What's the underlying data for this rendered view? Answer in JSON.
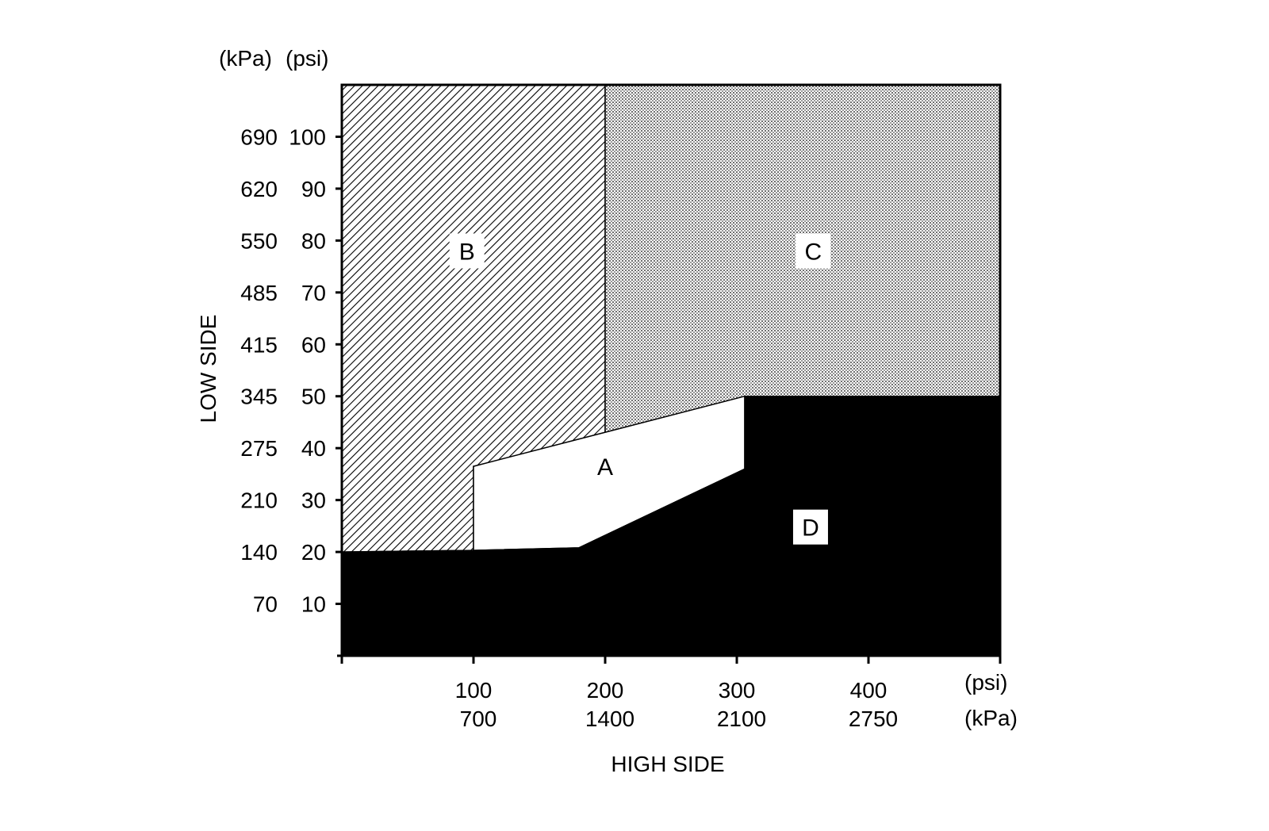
{
  "chart_data": {
    "type": "area",
    "x_axis": {
      "title": "HIGH SIDE",
      "unit_labels": [
        "(psi)",
        "(kPa)"
      ],
      "range_psi": [
        0,
        500
      ],
      "ticks": [
        {
          "psi": 100,
          "psi_label": "100",
          "kpa_label": "700"
        },
        {
          "psi": 200,
          "psi_label": "200",
          "kpa_label": "1400"
        },
        {
          "psi": 300,
          "psi_label": "300",
          "kpa_label": "2100"
        },
        {
          "psi": 400,
          "psi_label": "400",
          "kpa_label": "2750"
        }
      ]
    },
    "y_axis": {
      "title": "LOW SIDE",
      "unit_labels": [
        "(kPa)",
        "(psi)"
      ],
      "range_psi": [
        0,
        110
      ],
      "ticks": [
        {
          "psi": 10,
          "psi_label": "10",
          "kpa_label": "70"
        },
        {
          "psi": 20,
          "psi_label": "20",
          "kpa_label": "140"
        },
        {
          "psi": 30,
          "psi_label": "30",
          "kpa_label": "210"
        },
        {
          "psi": 40,
          "psi_label": "40",
          "kpa_label": "275"
        },
        {
          "psi": 50,
          "psi_label": "50",
          "kpa_label": "345"
        },
        {
          "psi": 60,
          "psi_label": "60",
          "kpa_label": "415"
        },
        {
          "psi": 70,
          "psi_label": "70",
          "kpa_label": "485"
        },
        {
          "psi": 80,
          "psi_label": "80",
          "kpa_label": "550"
        },
        {
          "psi": 90,
          "psi_label": "90",
          "kpa_label": "620"
        },
        {
          "psi": 100,
          "psi_label": "100",
          "kpa_label": "690"
        }
      ]
    },
    "regions": [
      {
        "label": "B",
        "fill": "hatch",
        "label_at": [
          95,
          78
        ],
        "polygon": [
          [
            0,
            110
          ],
          [
            200,
            110
          ],
          [
            200,
            42
          ],
          [
            100,
            36.5
          ],
          [
            100,
            20.3
          ],
          [
            0,
            20
          ]
        ]
      },
      {
        "label": "C",
        "fill": "dots",
        "label_at": [
          358,
          78
        ],
        "polygon": [
          [
            200,
            110
          ],
          [
            500,
            110
          ],
          [
            500,
            50
          ],
          [
            306,
            50
          ],
          [
            200,
            42
          ]
        ]
      },
      {
        "label": "A",
        "fill": "white",
        "label_at": [
          200,
          36.5
        ],
        "polygon": [
          [
            100,
            36.5
          ],
          [
            306,
            50
          ],
          [
            306,
            36
          ],
          [
            180,
            20.8
          ],
          [
            100,
            20.3
          ]
        ]
      },
      {
        "label": "D",
        "fill": "black",
        "label_at": [
          356,
          24.8
        ],
        "polygon": [
          [
            0,
            20
          ],
          [
            100,
            20.3
          ],
          [
            180,
            20.8
          ],
          [
            306,
            36
          ],
          [
            306,
            50
          ],
          [
            500,
            50
          ],
          [
            500,
            0
          ],
          [
            0,
            0
          ]
        ]
      }
    ],
    "grid": false,
    "legend": "none"
  }
}
